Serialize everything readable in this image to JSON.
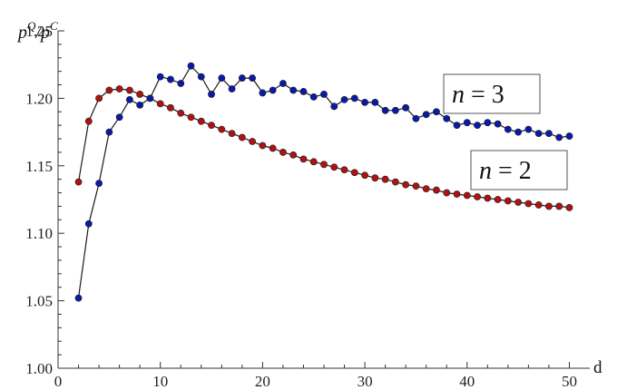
{
  "chart_data": {
    "type": "line",
    "title": "",
    "xlabel": "d",
    "ylabel": "p^Q / p^C",
    "xlim": [
      0,
      52
    ],
    "ylim": [
      1.0,
      1.25
    ],
    "x_ticks": [
      0,
      10,
      20,
      30,
      40,
      50
    ],
    "x_tick_labels": [
      "0",
      "10",
      "20",
      "30",
      "40",
      "50"
    ],
    "y_ticks": [
      1.0,
      1.05,
      1.1,
      1.15,
      1.2,
      1.25
    ],
    "y_tick_labels": [
      "1.00",
      "1.05",
      "1.10",
      "1.15",
      "1.20",
      "1.25"
    ],
    "grid": false,
    "series": [
      {
        "name": "n = 2",
        "color": "#b01212",
        "x": [
          2,
          3,
          4,
          5,
          6,
          7,
          8,
          9,
          10,
          11,
          12,
          13,
          14,
          15,
          16,
          17,
          18,
          19,
          20,
          21,
          22,
          23,
          24,
          25,
          26,
          27,
          28,
          29,
          30,
          31,
          32,
          33,
          34,
          35,
          36,
          37,
          38,
          39,
          40,
          41,
          42,
          43,
          44,
          45,
          46,
          47,
          48,
          49,
          50
        ],
        "values": [
          1.138,
          1.183,
          1.2,
          1.206,
          1.207,
          1.206,
          1.203,
          1.2,
          1.196,
          1.193,
          1.189,
          1.186,
          1.183,
          1.18,
          1.177,
          1.174,
          1.171,
          1.168,
          1.165,
          1.163,
          1.16,
          1.158,
          1.155,
          1.153,
          1.151,
          1.149,
          1.147,
          1.145,
          1.143,
          1.141,
          1.14,
          1.138,
          1.136,
          1.135,
          1.133,
          1.132,
          1.13,
          1.129,
          1.128,
          1.127,
          1.126,
          1.125,
          1.124,
          1.123,
          1.122,
          1.121,
          1.12,
          1.12,
          1.119
        ]
      },
      {
        "name": "n = 3",
        "color": "#0a1aa8",
        "x": [
          2,
          3,
          4,
          5,
          6,
          7,
          8,
          9,
          10,
          11,
          12,
          13,
          14,
          15,
          16,
          17,
          18,
          19,
          20,
          21,
          22,
          23,
          24,
          25,
          26,
          27,
          28,
          29,
          30,
          31,
          32,
          33,
          34,
          35,
          36,
          37,
          38,
          39,
          40,
          41,
          42,
          43,
          44,
          45,
          46,
          47,
          48,
          49,
          50
        ],
        "values": [
          1.052,
          1.107,
          1.137,
          1.175,
          1.186,
          1.199,
          1.195,
          1.2,
          1.216,
          1.214,
          1.211,
          1.224,
          1.216,
          1.203,
          1.215,
          1.207,
          1.215,
          1.215,
          1.204,
          1.206,
          1.211,
          1.206,
          1.205,
          1.201,
          1.203,
          1.194,
          1.199,
          1.2,
          1.197,
          1.197,
          1.191,
          1.191,
          1.193,
          1.185,
          1.188,
          1.19,
          1.185,
          1.18,
          1.182,
          1.18,
          1.182,
          1.181,
          1.177,
          1.175,
          1.177,
          1.174,
          1.174,
          1.171,
          1.172
        ]
      }
    ],
    "legend": [
      {
        "label": "n = 3",
        "position": "upper-right"
      },
      {
        "label": "n = 2",
        "position": "right"
      }
    ]
  }
}
